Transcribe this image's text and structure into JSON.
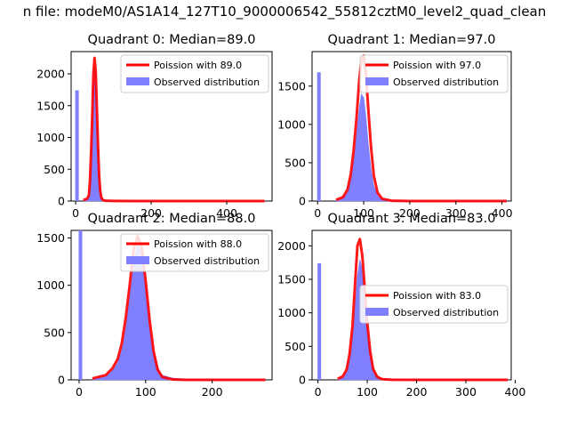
{
  "figure_title": "n file: modeM0/AS1A14_127T10_9000006542_55812cztM0_level2_quad_clean",
  "chart_data": [
    {
      "type": "bar",
      "title": "Quadrant 0: Median=89.0",
      "xlim": [
        -12,
        520
      ],
      "ylim": [
        0,
        2350
      ],
      "xticks": [
        0,
        200,
        400
      ],
      "yticks": [
        0,
        500,
        1000,
        1500,
        2000
      ],
      "spike": {
        "x": 0,
        "value": 1740
      },
      "dist_x": [
        20,
        30,
        35,
        38,
        41,
        44,
        47,
        50,
        53,
        56,
        59,
        62,
        65,
        68,
        72,
        80,
        100,
        150,
        300,
        500
      ],
      "dist_y": [
        10,
        30,
        80,
        300,
        700,
        1150,
        1750,
        2100,
        1950,
        1450,
        900,
        480,
        220,
        80,
        30,
        12,
        5,
        3,
        2,
        2
      ],
      "poisson_x": [
        20,
        30,
        35,
        38,
        41,
        44,
        47,
        50,
        53,
        56,
        59,
        62,
        65,
        68,
        72,
        80,
        100,
        150,
        300,
        500
      ],
      "poisson_y": [
        15,
        35,
        90,
        320,
        780,
        1350,
        2000,
        2250,
        2050,
        1500,
        900,
        420,
        160,
        55,
        15,
        5,
        2,
        0,
        0,
        0
      ],
      "legend": [
        "Poission with 89.0",
        "Observed distribution"
      ]
    },
    {
      "type": "bar",
      "title": "Quadrant 1: Median=97.0",
      "xlim": [
        -12,
        420
      ],
      "ylim": [
        0,
        1950
      ],
      "xticks": [
        0,
        100,
        200,
        300,
        400
      ],
      "yticks": [
        0,
        500,
        1000,
        1500
      ],
      "spike": {
        "x": 0,
        "value": 1680
      },
      "dist_x": [
        40,
        55,
        65,
        72,
        78,
        84,
        90,
        95,
        100,
        105,
        110,
        116,
        122,
        130,
        140,
        160,
        200,
        300,
        410
      ],
      "dist_y": [
        10,
        40,
        120,
        280,
        520,
        850,
        1200,
        1400,
        1350,
        1100,
        750,
        420,
        200,
        80,
        30,
        10,
        5,
        3,
        2
      ],
      "poisson_x": [
        40,
        55,
        65,
        72,
        78,
        84,
        90,
        95,
        100,
        105,
        110,
        116,
        122,
        130,
        140,
        160,
        200,
        300,
        410
      ],
      "poisson_y": [
        15,
        50,
        150,
        350,
        650,
        1050,
        1550,
        1850,
        1900,
        1650,
        1200,
        700,
        330,
        110,
        30,
        5,
        0,
        0,
        0
      ],
      "legend": [
        "Poission with 97.0",
        "Observed distribution"
      ]
    },
    {
      "type": "bar",
      "title": "Quadrant 2: Median=88.0",
      "xlim": [
        -12,
        290
      ],
      "ylim": [
        0,
        1580
      ],
      "xticks": [
        0,
        100,
        200
      ],
      "yticks": [
        0,
        500,
        1000,
        1500
      ],
      "spike": {
        "x": 0,
        "value": 1580
      },
      "dist_x": [
        20,
        40,
        50,
        58,
        64,
        70,
        76,
        82,
        88,
        94,
        100,
        106,
        112,
        118,
        125,
        140,
        160,
        200,
        280
      ],
      "dist_y": [
        10,
        40,
        100,
        180,
        320,
        550,
        900,
        1250,
        1450,
        1350,
        1000,
        600,
        300,
        130,
        50,
        20,
        8,
        3,
        2
      ],
      "poisson_x": [
        20,
        40,
        50,
        58,
        64,
        70,
        76,
        82,
        88,
        94,
        100,
        106,
        112,
        118,
        125,
        140,
        160,
        200,
        280
      ],
      "poisson_y": [
        15,
        50,
        120,
        220,
        380,
        650,
        1000,
        1380,
        1520,
        1400,
        1050,
        630,
        300,
        110,
        30,
        5,
        0,
        0,
        0
      ],
      "legend": [
        "Poission with 88.0",
        "Observed distribution"
      ]
    },
    {
      "type": "bar",
      "title": "Quadrant 3: Median=83.0",
      "xlim": [
        -12,
        392
      ],
      "ylim": [
        0,
        2230
      ],
      "xticks": [
        0,
        100,
        200,
        300,
        400
      ],
      "yticks": [
        0,
        500,
        1000,
        1500,
        2000
      ],
      "spike": {
        "x": 0,
        "value": 1740
      },
      "dist_x": [
        40,
        50,
        58,
        64,
        70,
        75,
        80,
        85,
        90,
        95,
        100,
        106,
        112,
        120,
        130,
        150,
        200,
        300,
        385
      ],
      "dist_y": [
        10,
        40,
        120,
        300,
        650,
        1100,
        1550,
        1800,
        1650,
        1250,
        800,
        420,
        180,
        60,
        20,
        8,
        4,
        2,
        2
      ],
      "poisson_x": [
        40,
        50,
        58,
        64,
        70,
        75,
        80,
        85,
        90,
        95,
        100,
        106,
        112,
        120,
        130,
        150,
        200,
        300,
        385
      ],
      "poisson_y": [
        15,
        50,
        150,
        380,
        800,
        1400,
        2000,
        2100,
        1850,
        1350,
        850,
        420,
        160,
        45,
        10,
        2,
        0,
        0,
        0
      ],
      "legend": [
        "Poission with 83.0",
        "Observed distribution"
      ]
    }
  ]
}
